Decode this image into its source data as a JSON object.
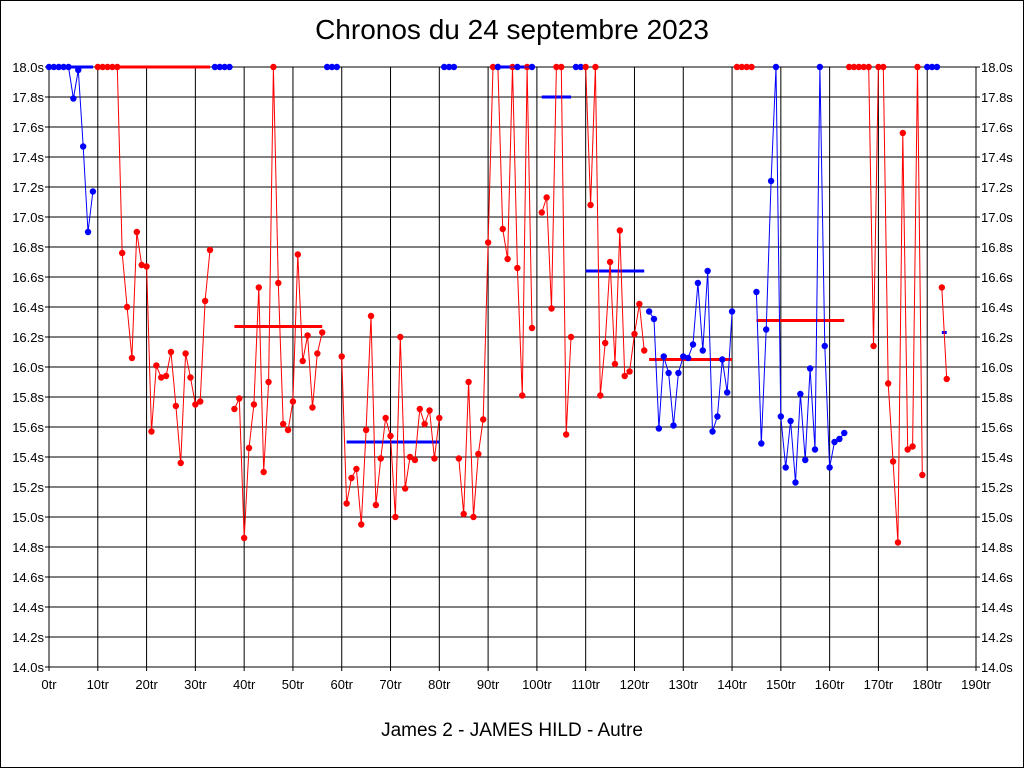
{
  "title": "Chronos du 24 septembre 2023",
  "footer": "James 2 - JAMES HILD - Autre",
  "chart_data": {
    "type": "line",
    "title": "Chronos du 24 septembre 2023",
    "xlabel": "",
    "ylabel": "",
    "xlim": [
      0,
      190
    ],
    "ylim": [
      14.0,
      18.0
    ],
    "grid": true,
    "x_tick_labels": [
      "0tr",
      "10tr",
      "20tr",
      "30tr",
      "40tr",
      "50tr",
      "60tr",
      "70tr",
      "80tr",
      "90tr",
      "100tr",
      "110tr",
      "120tr",
      "130tr",
      "140tr",
      "150tr",
      "160tr",
      "170tr",
      "180tr",
      "190tr"
    ],
    "y_tick_labels": [
      "14.0s",
      "14.2s",
      "14.4s",
      "14.6s",
      "14.8s",
      "15.0s",
      "15.2s",
      "15.4s",
      "15.6s",
      "15.8s",
      "16.0s",
      "16.2s",
      "16.4s",
      "16.6s",
      "16.8s",
      "17.0s",
      "17.2s",
      "17.4s",
      "17.6s",
      "17.8s",
      "18.0s"
    ],
    "colors": {
      "blue": "#0000ff",
      "red": "#ff0000"
    },
    "segments": [
      {
        "color": "blue",
        "mean": 18.0,
        "points": [
          [
            0,
            18.0
          ],
          [
            1,
            18.0
          ],
          [
            2,
            18.0
          ],
          [
            3,
            18.0
          ],
          [
            4,
            18.0
          ],
          [
            5,
            17.79
          ],
          [
            6,
            17.98
          ],
          [
            7,
            17.47
          ],
          [
            8,
            16.9
          ],
          [
            9,
            17.17
          ]
        ]
      },
      {
        "color": "red",
        "mean": 18.0,
        "points": [
          [
            10,
            18.0
          ],
          [
            11,
            18.0
          ],
          [
            12,
            18.0
          ],
          [
            13,
            18.0
          ],
          [
            14,
            18.0
          ],
          [
            15,
            16.76
          ],
          [
            16,
            16.4
          ],
          [
            17,
            16.06
          ],
          [
            18,
            16.9
          ],
          [
            19,
            16.68
          ],
          [
            20,
            16.67
          ],
          [
            21,
            15.57
          ],
          [
            22,
            16.01
          ],
          [
            23,
            15.93
          ],
          [
            24,
            15.94
          ],
          [
            25,
            16.1
          ],
          [
            26,
            15.74
          ],
          [
            27,
            15.36
          ],
          [
            28,
            16.09
          ],
          [
            29,
            15.93
          ],
          [
            30,
            15.75
          ],
          [
            31,
            15.77
          ],
          [
            32,
            16.44
          ],
          [
            33,
            16.78
          ]
        ]
      },
      {
        "color": "blue",
        "mean": 18.0,
        "points": [
          [
            34,
            18.0
          ],
          [
            35,
            18.0
          ],
          [
            36,
            18.0
          ],
          [
            37,
            18.0
          ]
        ]
      },
      {
        "color": "red",
        "mean": 16.27,
        "mean_from": 38,
        "mean_to": 56,
        "points": [
          [
            38,
            15.72
          ],
          [
            39,
            15.79
          ],
          [
            40,
            14.86
          ],
          [
            41,
            15.46
          ],
          [
            42,
            15.75
          ],
          [
            43,
            16.53
          ],
          [
            44,
            15.3
          ],
          [
            45,
            15.9
          ],
          [
            46,
            18.0
          ],
          [
            47,
            16.56
          ],
          [
            48,
            15.62
          ],
          [
            49,
            15.58
          ],
          [
            50,
            15.77
          ],
          [
            51,
            16.75
          ],
          [
            52,
            16.04
          ],
          [
            53,
            16.21
          ],
          [
            54,
            15.73
          ],
          [
            55,
            16.09
          ],
          [
            56,
            16.23
          ]
        ]
      },
      {
        "color": "blue",
        "mean": 18.0,
        "points": [
          [
            57,
            18.0
          ],
          [
            58,
            18.0
          ],
          [
            59,
            18.0
          ]
        ]
      },
      {
        "color": "red",
        "points": [
          [
            60,
            16.07
          ],
          [
            61,
            15.09
          ],
          [
            62,
            15.26
          ],
          [
            63,
            15.32
          ],
          [
            64,
            14.95
          ],
          [
            65,
            15.58
          ],
          [
            66,
            16.34
          ],
          [
            67,
            15.08
          ],
          [
            68,
            15.39
          ],
          [
            69,
            15.66
          ],
          [
            70,
            15.54
          ],
          [
            71,
            15.0
          ],
          [
            72,
            16.2
          ],
          [
            73,
            15.19
          ],
          [
            74,
            15.4
          ],
          [
            75,
            15.38
          ],
          [
            76,
            15.72
          ],
          [
            77,
            15.62
          ],
          [
            78,
            15.71
          ],
          [
            79,
            15.39
          ],
          [
            80,
            15.66
          ]
        ]
      },
      {
        "color": "blue",
        "mean": 15.5,
        "mean_from": 61,
        "mean_to": 80,
        "points": [
          [
            81,
            18.0
          ],
          [
            82,
            18.0
          ],
          [
            83,
            18.0
          ]
        ]
      },
      {
        "color": "red",
        "points": [
          [
            84,
            15.39
          ],
          [
            85,
            15.02
          ],
          [
            86,
            15.9
          ],
          [
            87,
            15.0
          ],
          [
            88,
            15.42
          ],
          [
            89,
            15.65
          ],
          [
            90,
            16.83
          ],
          [
            91,
            18.0
          ],
          [
            92,
            18.0
          ],
          [
            93,
            16.92
          ],
          [
            94,
            16.72
          ],
          [
            95,
            18.0
          ],
          [
            96,
            16.66
          ],
          [
            97,
            15.81
          ],
          [
            98,
            18.0
          ],
          [
            99,
            16.26
          ]
        ]
      },
      {
        "color": "blue",
        "mean": 18.0,
        "points": [
          [
            92,
            18.0
          ],
          [
            96,
            18.0
          ],
          [
            99,
            18.0
          ]
        ]
      },
      {
        "color": "red",
        "points": [
          [
            101,
            17.03
          ],
          [
            102,
            17.13
          ],
          [
            103,
            16.39
          ],
          [
            104,
            18.0
          ],
          [
            105,
            18.0
          ],
          [
            106,
            15.55
          ],
          [
            107,
            16.2
          ]
        ]
      },
      {
        "color": "blue",
        "mean": 17.8,
        "mean_from": 101,
        "mean_to": 107,
        "points": [
          [
            108,
            18.0
          ],
          [
            109,
            18.0
          ]
        ]
      },
      {
        "color": "red",
        "points": [
          [
            110,
            18.0
          ],
          [
            111,
            17.08
          ],
          [
            112,
            18.0
          ],
          [
            113,
            15.81
          ],
          [
            114,
            16.16
          ],
          [
            115,
            16.7
          ],
          [
            116,
            16.02
          ],
          [
            117,
            16.91
          ],
          [
            118,
            15.94
          ],
          [
            119,
            15.97
          ],
          [
            120,
            16.22
          ],
          [
            121,
            16.42
          ],
          [
            122,
            16.11
          ]
        ]
      },
      {
        "color": "blue",
        "mean": 16.64,
        "mean_from": 110,
        "mean_to": 122,
        "points": [
          [
            123,
            16.37
          ],
          [
            124,
            16.32
          ],
          [
            125,
            15.59
          ],
          [
            126,
            16.07
          ],
          [
            127,
            15.96
          ],
          [
            128,
            15.61
          ],
          [
            129,
            15.96
          ],
          [
            130,
            16.07
          ],
          [
            131,
            16.06
          ],
          [
            132,
            16.15
          ],
          [
            133,
            16.56
          ],
          [
            134,
            16.11
          ],
          [
            135,
            16.64
          ],
          [
            136,
            15.57
          ],
          [
            137,
            15.67
          ],
          [
            138,
            16.05
          ],
          [
            139,
            15.83
          ],
          [
            140,
            16.37
          ]
        ]
      },
      {
        "color": "red",
        "mean": 16.05,
        "mean_from": 123,
        "mean_to": 140,
        "points": [
          [
            141,
            18.0
          ],
          [
            142,
            18.0
          ],
          [
            143,
            18.0
          ],
          [
            144,
            18.0
          ]
        ]
      },
      {
        "color": "blue",
        "points": [
          [
            145,
            16.5
          ],
          [
            146,
            15.49
          ],
          [
            147,
            16.25
          ],
          [
            148,
            17.24
          ],
          [
            149,
            18.0
          ],
          [
            150,
            15.67
          ],
          [
            151,
            15.33
          ],
          [
            152,
            15.64
          ],
          [
            153,
            15.23
          ],
          [
            154,
            15.82
          ],
          [
            155,
            15.38
          ],
          [
            156,
            15.99
          ],
          [
            157,
            15.45
          ],
          [
            158,
            18.0
          ],
          [
            159,
            16.14
          ],
          [
            160,
            15.33
          ],
          [
            161,
            15.5
          ],
          [
            162,
            15.52
          ],
          [
            163,
            15.56
          ]
        ]
      },
      {
        "color": "red",
        "mean": 16.31,
        "mean_from": 145,
        "mean_to": 163,
        "points": [
          [
            164,
            18.0
          ],
          [
            165,
            18.0
          ],
          [
            166,
            18.0
          ],
          [
            167,
            18.0
          ],
          [
            168,
            18.0
          ],
          [
            169,
            16.14
          ],
          [
            170,
            18.0
          ],
          [
            171,
            18.0
          ],
          [
            172,
            15.89
          ],
          [
            173,
            15.37
          ],
          [
            174,
            14.83
          ],
          [
            175,
            17.56
          ],
          [
            176,
            15.45
          ],
          [
            177,
            15.47
          ],
          [
            178,
            18.0
          ],
          [
            179,
            15.28
          ]
        ]
      },
      {
        "color": "blue",
        "mean": 18.0,
        "points": [
          [
            180,
            18.0
          ],
          [
            181,
            18.0
          ],
          [
            182,
            18.0
          ]
        ]
      },
      {
        "color": "red",
        "points": [
          [
            183,
            16.53
          ],
          [
            184,
            15.92
          ]
        ]
      },
      {
        "color": "blue",
        "mean": 16.23,
        "mean_from": 183,
        "mean_to": 184,
        "points": []
      }
    ]
  }
}
